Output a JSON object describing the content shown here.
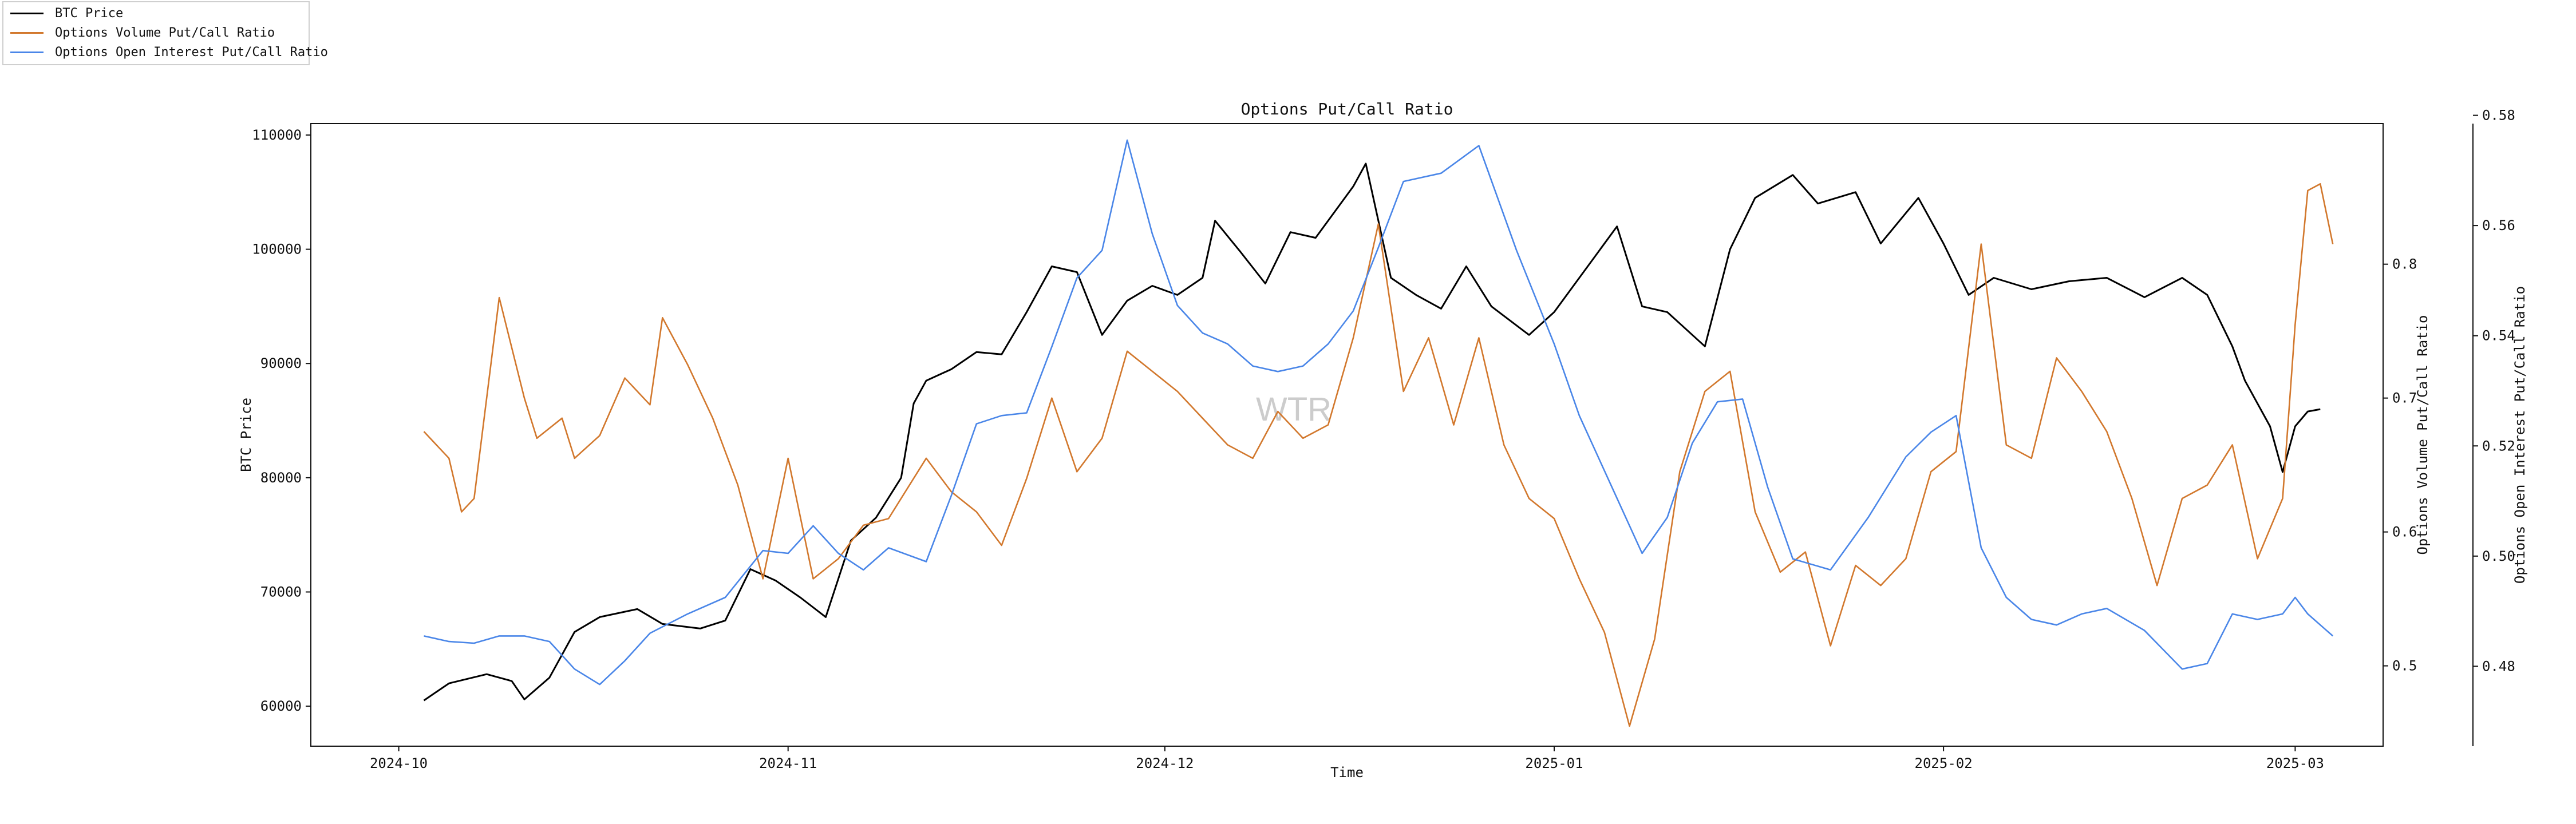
{
  "legend": {
    "items": [
      {
        "label": "BTC Price",
        "color": "#000000"
      },
      {
        "label": "Options Volume Put/Call Ratio",
        "color": "#d2782d"
      },
      {
        "label": "Options Open Interest Put/Call Ratio",
        "color": "#4a86e8"
      }
    ]
  },
  "chart_data": {
    "type": "line",
    "title": "Options Put/Call Ratio",
    "xlabel": "Time",
    "watermark": "WTR",
    "x_ticks": [
      "2024-10",
      "2024-11",
      "2024-12",
      "2025-01",
      "2025-02",
      "2025-03"
    ],
    "x_range": [
      "2024-09-24",
      "2025-03-08"
    ],
    "axes": {
      "left": {
        "label": "BTC Price",
        "ylim": [
          56500,
          111000
        ],
        "ticks": [
          60000,
          70000,
          80000,
          90000,
          100000,
          110000
        ]
      },
      "right1": {
        "label": "Options Volume Put/Call Ratio",
        "ylim": [
          0.44,
          0.905
        ],
        "ticks": [
          "0.5",
          "0.6",
          "0.7",
          "0.8"
        ]
      },
      "right2": {
        "label": "Options Open Interest Put/Call Ratio",
        "ylim": [
          0.4655,
          0.5785
        ],
        "ticks": [
          "0.48",
          "0.50",
          "0.52",
          "0.54",
          "0.56",
          "0.58"
        ]
      }
    },
    "series": [
      {
        "name": "BTC Price",
        "axis": "left",
        "color": "#000000",
        "points": [
          [
            "2024-10-03",
            60500
          ],
          [
            "2024-10-05",
            62000
          ],
          [
            "2024-10-08",
            62800
          ],
          [
            "2024-10-10",
            62200
          ],
          [
            "2024-10-11",
            60600
          ],
          [
            "2024-10-13",
            62500
          ],
          [
            "2024-10-15",
            66500
          ],
          [
            "2024-10-17",
            67800
          ],
          [
            "2024-10-20",
            68500
          ],
          [
            "2024-10-22",
            67200
          ],
          [
            "2024-10-25",
            66800
          ],
          [
            "2024-10-27",
            67500
          ],
          [
            "2024-10-29",
            72000
          ],
          [
            "2024-10-31",
            71000
          ],
          [
            "2024-11-02",
            69500
          ],
          [
            "2024-11-04",
            67800
          ],
          [
            "2024-11-06",
            74500
          ],
          [
            "2024-11-08",
            76500
          ],
          [
            "2024-11-10",
            80000
          ],
          [
            "2024-11-11",
            86500
          ],
          [
            "2024-11-12",
            88500
          ],
          [
            "2024-11-14",
            89500
          ],
          [
            "2024-11-16",
            91000
          ],
          [
            "2024-11-18",
            90800
          ],
          [
            "2024-11-20",
            94500
          ],
          [
            "2024-11-22",
            98500
          ],
          [
            "2024-11-24",
            98000
          ],
          [
            "2024-11-26",
            92500
          ],
          [
            "2024-11-28",
            95500
          ],
          [
            "2024-11-30",
            96800
          ],
          [
            "2024-12-02",
            96000
          ],
          [
            "2024-12-04",
            97500
          ],
          [
            "2024-12-05",
            102500
          ],
          [
            "2024-12-07",
            99800
          ],
          [
            "2024-12-09",
            97000
          ],
          [
            "2024-12-11",
            101500
          ],
          [
            "2024-12-13",
            101000
          ],
          [
            "2024-12-16",
            105500
          ],
          [
            "2024-12-17",
            107500
          ],
          [
            "2024-12-19",
            97500
          ],
          [
            "2024-12-21",
            96000
          ],
          [
            "2024-12-23",
            94800
          ],
          [
            "2024-12-25",
            98500
          ],
          [
            "2024-12-27",
            95000
          ],
          [
            "2024-12-30",
            92500
          ],
          [
            "2025-01-01",
            94500
          ],
          [
            "2025-01-03",
            97500
          ],
          [
            "2025-01-06",
            102000
          ],
          [
            "2025-01-08",
            95000
          ],
          [
            "2025-01-10",
            94500
          ],
          [
            "2025-01-13",
            91500
          ],
          [
            "2025-01-15",
            100000
          ],
          [
            "2025-01-17",
            104500
          ],
          [
            "2025-01-20",
            106500
          ],
          [
            "2025-01-22",
            104000
          ],
          [
            "2025-01-25",
            105000
          ],
          [
            "2025-01-27",
            100500
          ],
          [
            "2025-01-30",
            104500
          ],
          [
            "2025-02-01",
            100500
          ],
          [
            "2025-02-03",
            96000
          ],
          [
            "2025-02-05",
            97500
          ],
          [
            "2025-02-08",
            96500
          ],
          [
            "2025-02-11",
            97200
          ],
          [
            "2025-02-14",
            97500
          ],
          [
            "2025-02-17",
            95800
          ],
          [
            "2025-02-20",
            97500
          ],
          [
            "2025-02-22",
            96000
          ],
          [
            "2025-02-24",
            91500
          ],
          [
            "2025-02-25",
            88500
          ],
          [
            "2025-02-27",
            84500
          ],
          [
            "2025-02-28",
            80500
          ],
          [
            "2025-03-01",
            84500
          ],
          [
            "2025-03-02",
            85800
          ],
          [
            "2025-03-03",
            86000
          ]
        ]
      },
      {
        "name": "Options Volume Put/Call Ratio",
        "axis": "right1",
        "color": "#d2782d",
        "points": [
          [
            "2024-10-03",
            0.675
          ],
          [
            "2024-10-05",
            0.655
          ],
          [
            "2024-10-06",
            0.615
          ],
          [
            "2024-10-07",
            0.625
          ],
          [
            "2024-10-09",
            0.775
          ],
          [
            "2024-10-11",
            0.7
          ],
          [
            "2024-10-12",
            0.67
          ],
          [
            "2024-10-14",
            0.685
          ],
          [
            "2024-10-15",
            0.655
          ],
          [
            "2024-10-17",
            0.672
          ],
          [
            "2024-10-19",
            0.715
          ],
          [
            "2024-10-21",
            0.695
          ],
          [
            "2024-10-22",
            0.76
          ],
          [
            "2024-10-24",
            0.725
          ],
          [
            "2024-10-26",
            0.685
          ],
          [
            "2024-10-28",
            0.635
          ],
          [
            "2024-10-30",
            0.565
          ],
          [
            "2024-11-01",
            0.655
          ],
          [
            "2024-11-03",
            0.565
          ],
          [
            "2024-11-05",
            0.58
          ],
          [
            "2024-11-07",
            0.605
          ],
          [
            "2024-11-09",
            0.61
          ],
          [
            "2024-11-12",
            0.655
          ],
          [
            "2024-11-14",
            0.63
          ],
          [
            "2024-11-16",
            0.615
          ],
          [
            "2024-11-18",
            0.59
          ],
          [
            "2024-11-20",
            0.64
          ],
          [
            "2024-11-22",
            0.7
          ],
          [
            "2024-11-24",
            0.645
          ],
          [
            "2024-11-26",
            0.67
          ],
          [
            "2024-11-28",
            0.735
          ],
          [
            "2024-11-30",
            0.72
          ],
          [
            "2024-12-02",
            0.705
          ],
          [
            "2024-12-04",
            0.685
          ],
          [
            "2024-12-06",
            0.665
          ],
          [
            "2024-12-08",
            0.655
          ],
          [
            "2024-12-10",
            0.69
          ],
          [
            "2024-12-12",
            0.67
          ],
          [
            "2024-12-14",
            0.68
          ],
          [
            "2024-12-16",
            0.745
          ],
          [
            "2024-12-18",
            0.83
          ],
          [
            "2024-12-20",
            0.705
          ],
          [
            "2024-12-22",
            0.745
          ],
          [
            "2024-12-24",
            0.68
          ],
          [
            "2024-12-26",
            0.745
          ],
          [
            "2024-12-28",
            0.665
          ],
          [
            "2024-12-30",
            0.625
          ],
          [
            "2025-01-01",
            0.61
          ],
          [
            "2025-01-03",
            0.565
          ],
          [
            "2025-01-05",
            0.525
          ],
          [
            "2025-01-07",
            0.455
          ],
          [
            "2025-01-09",
            0.52
          ],
          [
            "2025-01-11",
            0.645
          ],
          [
            "2025-01-13",
            0.705
          ],
          [
            "2025-01-15",
            0.72
          ],
          [
            "2025-01-17",
            0.615
          ],
          [
            "2025-01-19",
            0.57
          ],
          [
            "2025-01-21",
            0.585
          ],
          [
            "2025-01-23",
            0.515
          ],
          [
            "2025-01-25",
            0.575
          ],
          [
            "2025-01-27",
            0.56
          ],
          [
            "2025-01-29",
            0.58
          ],
          [
            "2025-01-31",
            0.645
          ],
          [
            "2025-02-02",
            0.66
          ],
          [
            "2025-02-04",
            0.815
          ],
          [
            "2025-02-06",
            0.665
          ],
          [
            "2025-02-08",
            0.655
          ],
          [
            "2025-02-10",
            0.73
          ],
          [
            "2025-02-12",
            0.705
          ],
          [
            "2025-02-14",
            0.675
          ],
          [
            "2025-02-16",
            0.625
          ],
          [
            "2025-02-18",
            0.56
          ],
          [
            "2025-02-20",
            0.625
          ],
          [
            "2025-02-22",
            0.635
          ],
          [
            "2025-02-24",
            0.665
          ],
          [
            "2025-02-26",
            0.58
          ],
          [
            "2025-02-28",
            0.625
          ],
          [
            "2025-03-01",
            0.755
          ],
          [
            "2025-03-02",
            0.855
          ],
          [
            "2025-03-03",
            0.86
          ],
          [
            "2025-03-04",
            0.815
          ]
        ]
      },
      {
        "name": "Options Open Interest Put/Call Ratio",
        "axis": "right2",
        "color": "#4a86e8",
        "points": [
          [
            "2024-10-03",
            0.4855
          ],
          [
            "2024-10-05",
            0.4845
          ],
          [
            "2024-10-07",
            0.4842
          ],
          [
            "2024-10-09",
            0.4855
          ],
          [
            "2024-10-11",
            0.4855
          ],
          [
            "2024-10-13",
            0.4845
          ],
          [
            "2024-10-15",
            0.4795
          ],
          [
            "2024-10-17",
            0.4767
          ],
          [
            "2024-10-19",
            0.481
          ],
          [
            "2024-10-21",
            0.486
          ],
          [
            "2024-10-24",
            0.4895
          ],
          [
            "2024-10-27",
            0.4925
          ],
          [
            "2024-10-30",
            0.501
          ],
          [
            "2024-11-01",
            0.5005
          ],
          [
            "2024-11-03",
            0.5055
          ],
          [
            "2024-11-05",
            0.5005
          ],
          [
            "2024-11-07",
            0.4975
          ],
          [
            "2024-11-09",
            0.5015
          ],
          [
            "2024-11-12",
            0.499
          ],
          [
            "2024-11-14",
            0.511
          ],
          [
            "2024-11-16",
            0.524
          ],
          [
            "2024-11-18",
            0.5255
          ],
          [
            "2024-11-20",
            0.526
          ],
          [
            "2024-11-22",
            0.538
          ],
          [
            "2024-11-24",
            0.5505
          ],
          [
            "2024-11-26",
            0.5555
          ],
          [
            "2024-11-28",
            0.5755
          ],
          [
            "2024-11-30",
            0.5585
          ],
          [
            "2024-12-02",
            0.5455
          ],
          [
            "2024-12-04",
            0.5405
          ],
          [
            "2024-12-06",
            0.5385
          ],
          [
            "2024-12-08",
            0.5345
          ],
          [
            "2024-12-10",
            0.5335
          ],
          [
            "2024-12-12",
            0.5345
          ],
          [
            "2024-12-14",
            0.5385
          ],
          [
            "2024-12-16",
            0.5445
          ],
          [
            "2024-12-18",
            0.556
          ],
          [
            "2024-12-20",
            0.568
          ],
          [
            "2024-12-23",
            0.5695
          ],
          [
            "2024-12-26",
            0.5745
          ],
          [
            "2024-12-29",
            0.5555
          ],
          [
            "2025-01-01",
            0.5385
          ],
          [
            "2025-01-03",
            0.5255
          ],
          [
            "2025-01-06",
            0.5105
          ],
          [
            "2025-01-08",
            0.5005
          ],
          [
            "2025-01-10",
            0.507
          ],
          [
            "2025-01-12",
            0.5205
          ],
          [
            "2025-01-14",
            0.528
          ],
          [
            "2025-01-16",
            0.5285
          ],
          [
            "2025-01-18",
            0.5125
          ],
          [
            "2025-01-20",
            0.4995
          ],
          [
            "2025-01-23",
            0.4975
          ],
          [
            "2025-01-26",
            0.507
          ],
          [
            "2025-01-29",
            0.518
          ],
          [
            "2025-01-31",
            0.5225
          ],
          [
            "2025-02-02",
            0.5255
          ],
          [
            "2025-02-04",
            0.5015
          ],
          [
            "2025-02-06",
            0.4925
          ],
          [
            "2025-02-08",
            0.4885
          ],
          [
            "2025-02-10",
            0.4875
          ],
          [
            "2025-02-12",
            0.4895
          ],
          [
            "2025-02-14",
            0.4905
          ],
          [
            "2025-02-17",
            0.4865
          ],
          [
            "2025-02-20",
            0.4795
          ],
          [
            "2025-02-22",
            0.4805
          ],
          [
            "2025-02-24",
            0.4895
          ],
          [
            "2025-02-26",
            0.4885
          ],
          [
            "2025-02-28",
            0.4895
          ],
          [
            "2025-03-01",
            0.4925
          ],
          [
            "2025-03-02",
            0.4895
          ],
          [
            "2025-03-04",
            0.4855
          ]
        ]
      }
    ]
  }
}
